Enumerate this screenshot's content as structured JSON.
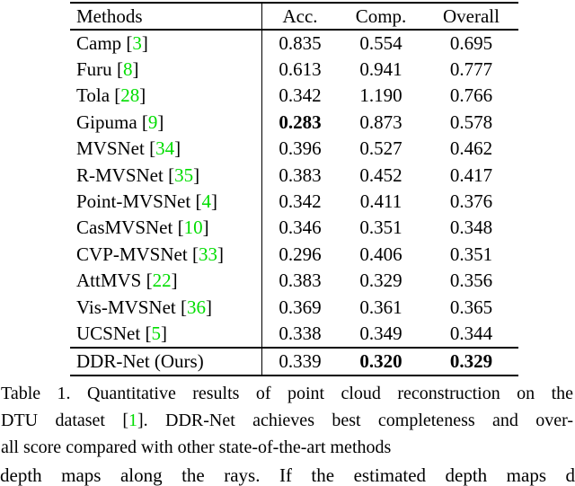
{
  "colors": {
    "citation_green": "#00dd00",
    "text": "#000000",
    "background": "#ffffff"
  },
  "table": {
    "headers": {
      "methods": "Methods",
      "acc": "Acc.",
      "comp": "Comp.",
      "overall": "Overall"
    },
    "rows": [
      {
        "method": "Camp",
        "ref": "3",
        "acc": "0.835",
        "comp": "0.554",
        "overall": "0.695",
        "bold": []
      },
      {
        "method": "Furu",
        "ref": "8",
        "acc": "0.613",
        "comp": "0.941",
        "overall": "0.777",
        "bold": []
      },
      {
        "method": "Tola",
        "ref": "28",
        "acc": "0.342",
        "comp": "1.190",
        "overall": "0.766",
        "bold": []
      },
      {
        "method": "Gipuma",
        "ref": "9",
        "acc": "0.283",
        "comp": "0.873",
        "overall": "0.578",
        "bold": [
          "acc"
        ]
      },
      {
        "method": "MVSNet",
        "ref": "34",
        "acc": "0.396",
        "comp": "0.527",
        "overall": "0.462",
        "bold": []
      },
      {
        "method": "R-MVSNet",
        "ref": "35",
        "acc": "0.383",
        "comp": "0.452",
        "overall": "0.417",
        "bold": []
      },
      {
        "method": "Point-MVSNet",
        "ref": "4",
        "acc": "0.342",
        "comp": "0.411",
        "overall": "0.376",
        "bold": []
      },
      {
        "method": "CasMVSNet",
        "ref": "10",
        "acc": "0.346",
        "comp": "0.351",
        "overall": "0.348",
        "bold": []
      },
      {
        "method": "CVP-MVSNet",
        "ref": "33",
        "acc": "0.296",
        "comp": "0.406",
        "overall": "0.351",
        "bold": []
      },
      {
        "method": "AttMVS",
        "ref": "22",
        "acc": "0.383",
        "comp": "0.329",
        "overall": "0.356",
        "bold": []
      },
      {
        "method": "Vis-MVSNet",
        "ref": "36",
        "acc": "0.369",
        "comp": "0.361",
        "overall": "0.365",
        "bold": []
      },
      {
        "method": "UCSNet",
        "ref": "5",
        "acc": "0.338",
        "comp": "0.349",
        "overall": "0.344",
        "bold": []
      }
    ],
    "final_row": {
      "method": "DDR-Net (Ours)",
      "ref": null,
      "acc": "0.339",
      "comp": "0.320",
      "overall": "0.329",
      "bold": [
        "comp",
        "overall"
      ]
    }
  },
  "caption": {
    "line1": "Table 1. Quantitative results of point cloud reconstruction on the",
    "line2_before": "DTU dataset [",
    "line2_ref": "1",
    "line2_after": "]. DDR-Net achieves best completeness and over-",
    "line3": "all score compared with other state-of-the-art methods"
  },
  "partial_line": "depth maps along the rays. If the estimated depth maps d"
}
